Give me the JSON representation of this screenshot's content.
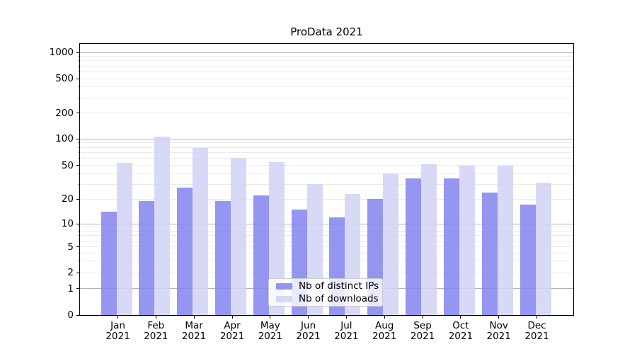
{
  "chart_data": {
    "type": "bar",
    "title": "ProData 2021",
    "x_months": [
      "Jan",
      "Feb",
      "Mar",
      "Apr",
      "May",
      "Jun",
      "Jul",
      "Aug",
      "Sep",
      "Oct",
      "Nov",
      "Dec"
    ],
    "x_year": "2021",
    "series": [
      {
        "name": "Nb of distinct IPs",
        "color_rgb": "131,131,240",
        "alpha": 0.85,
        "values": [
          14,
          19,
          27,
          19,
          22,
          15,
          12,
          20,
          35,
          35,
          24,
          17
        ]
      },
      {
        "name": "Nb of downloads",
        "color_rgb": "209,209,246",
        "alpha": 0.85,
        "values": [
          53,
          105,
          78,
          61,
          54,
          30,
          23,
          40,
          51,
          50,
          50,
          31
        ]
      }
    ],
    "yscale": "symlog",
    "y_tick_labels": [
      0,
      1,
      2,
      5,
      10,
      20,
      50,
      100,
      200,
      500,
      1000
    ],
    "ylim": [
      0,
      1300
    ],
    "grid": true,
    "legend_position": "lower center",
    "colors": {
      "major_grid": "#b3b3b3",
      "minor_grid": "#ebebeb",
      "spine": "#000000",
      "legend_border": "#cccccc",
      "background": "#ffffff"
    }
  }
}
